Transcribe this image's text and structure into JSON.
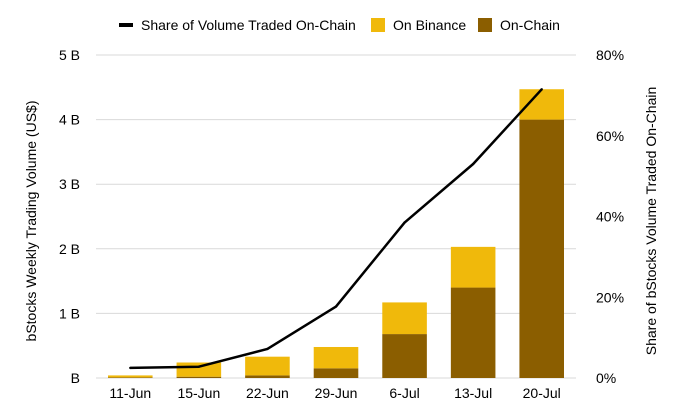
{
  "chart_data": {
    "type": "bar",
    "stacked": true,
    "categories": [
      "11-Jun",
      "15-Jun",
      "22-Jun",
      "29-Jun",
      "6-Jul",
      "13-Jul",
      "20-Jul"
    ],
    "series": [
      {
        "name": "On-Chain",
        "kind": "bar",
        "axis": "left",
        "color": "#8b5e00",
        "values": [
          0.01,
          0.02,
          0.04,
          0.15,
          0.68,
          1.4,
          4.0
        ]
      },
      {
        "name": "On Binance",
        "kind": "bar",
        "axis": "left",
        "color": "#f0b90b",
        "values": [
          0.03,
          0.22,
          0.29,
          0.33,
          0.49,
          0.63,
          0.47
        ]
      },
      {
        "name": "Share of Volume Traded On-Chain",
        "kind": "line",
        "axis": "right",
        "color": "#000000",
        "values": [
          2.5,
          2.8,
          7.2,
          17.7,
          38.5,
          53.0,
          71.5
        ]
      }
    ],
    "legend": {
      "position": "top",
      "order": [
        "Share of Volume Traded On-Chain",
        "On Binance",
        "On-Chain"
      ]
    },
    "ylabel": "bStocks Weekly Trading Volume (US$)",
    "y2label": "Share of bStocks Volume Traded On-Chain",
    "ylim": [
      0,
      5
    ],
    "y2lim": [
      0,
      80
    ],
    "yticks": [
      "B",
      "1 B",
      "2 B",
      "3 B",
      "4 B",
      "5 B"
    ],
    "y2ticks": [
      "0%",
      "20%",
      "40%",
      "60%",
      "80%"
    ],
    "grid": true
  }
}
